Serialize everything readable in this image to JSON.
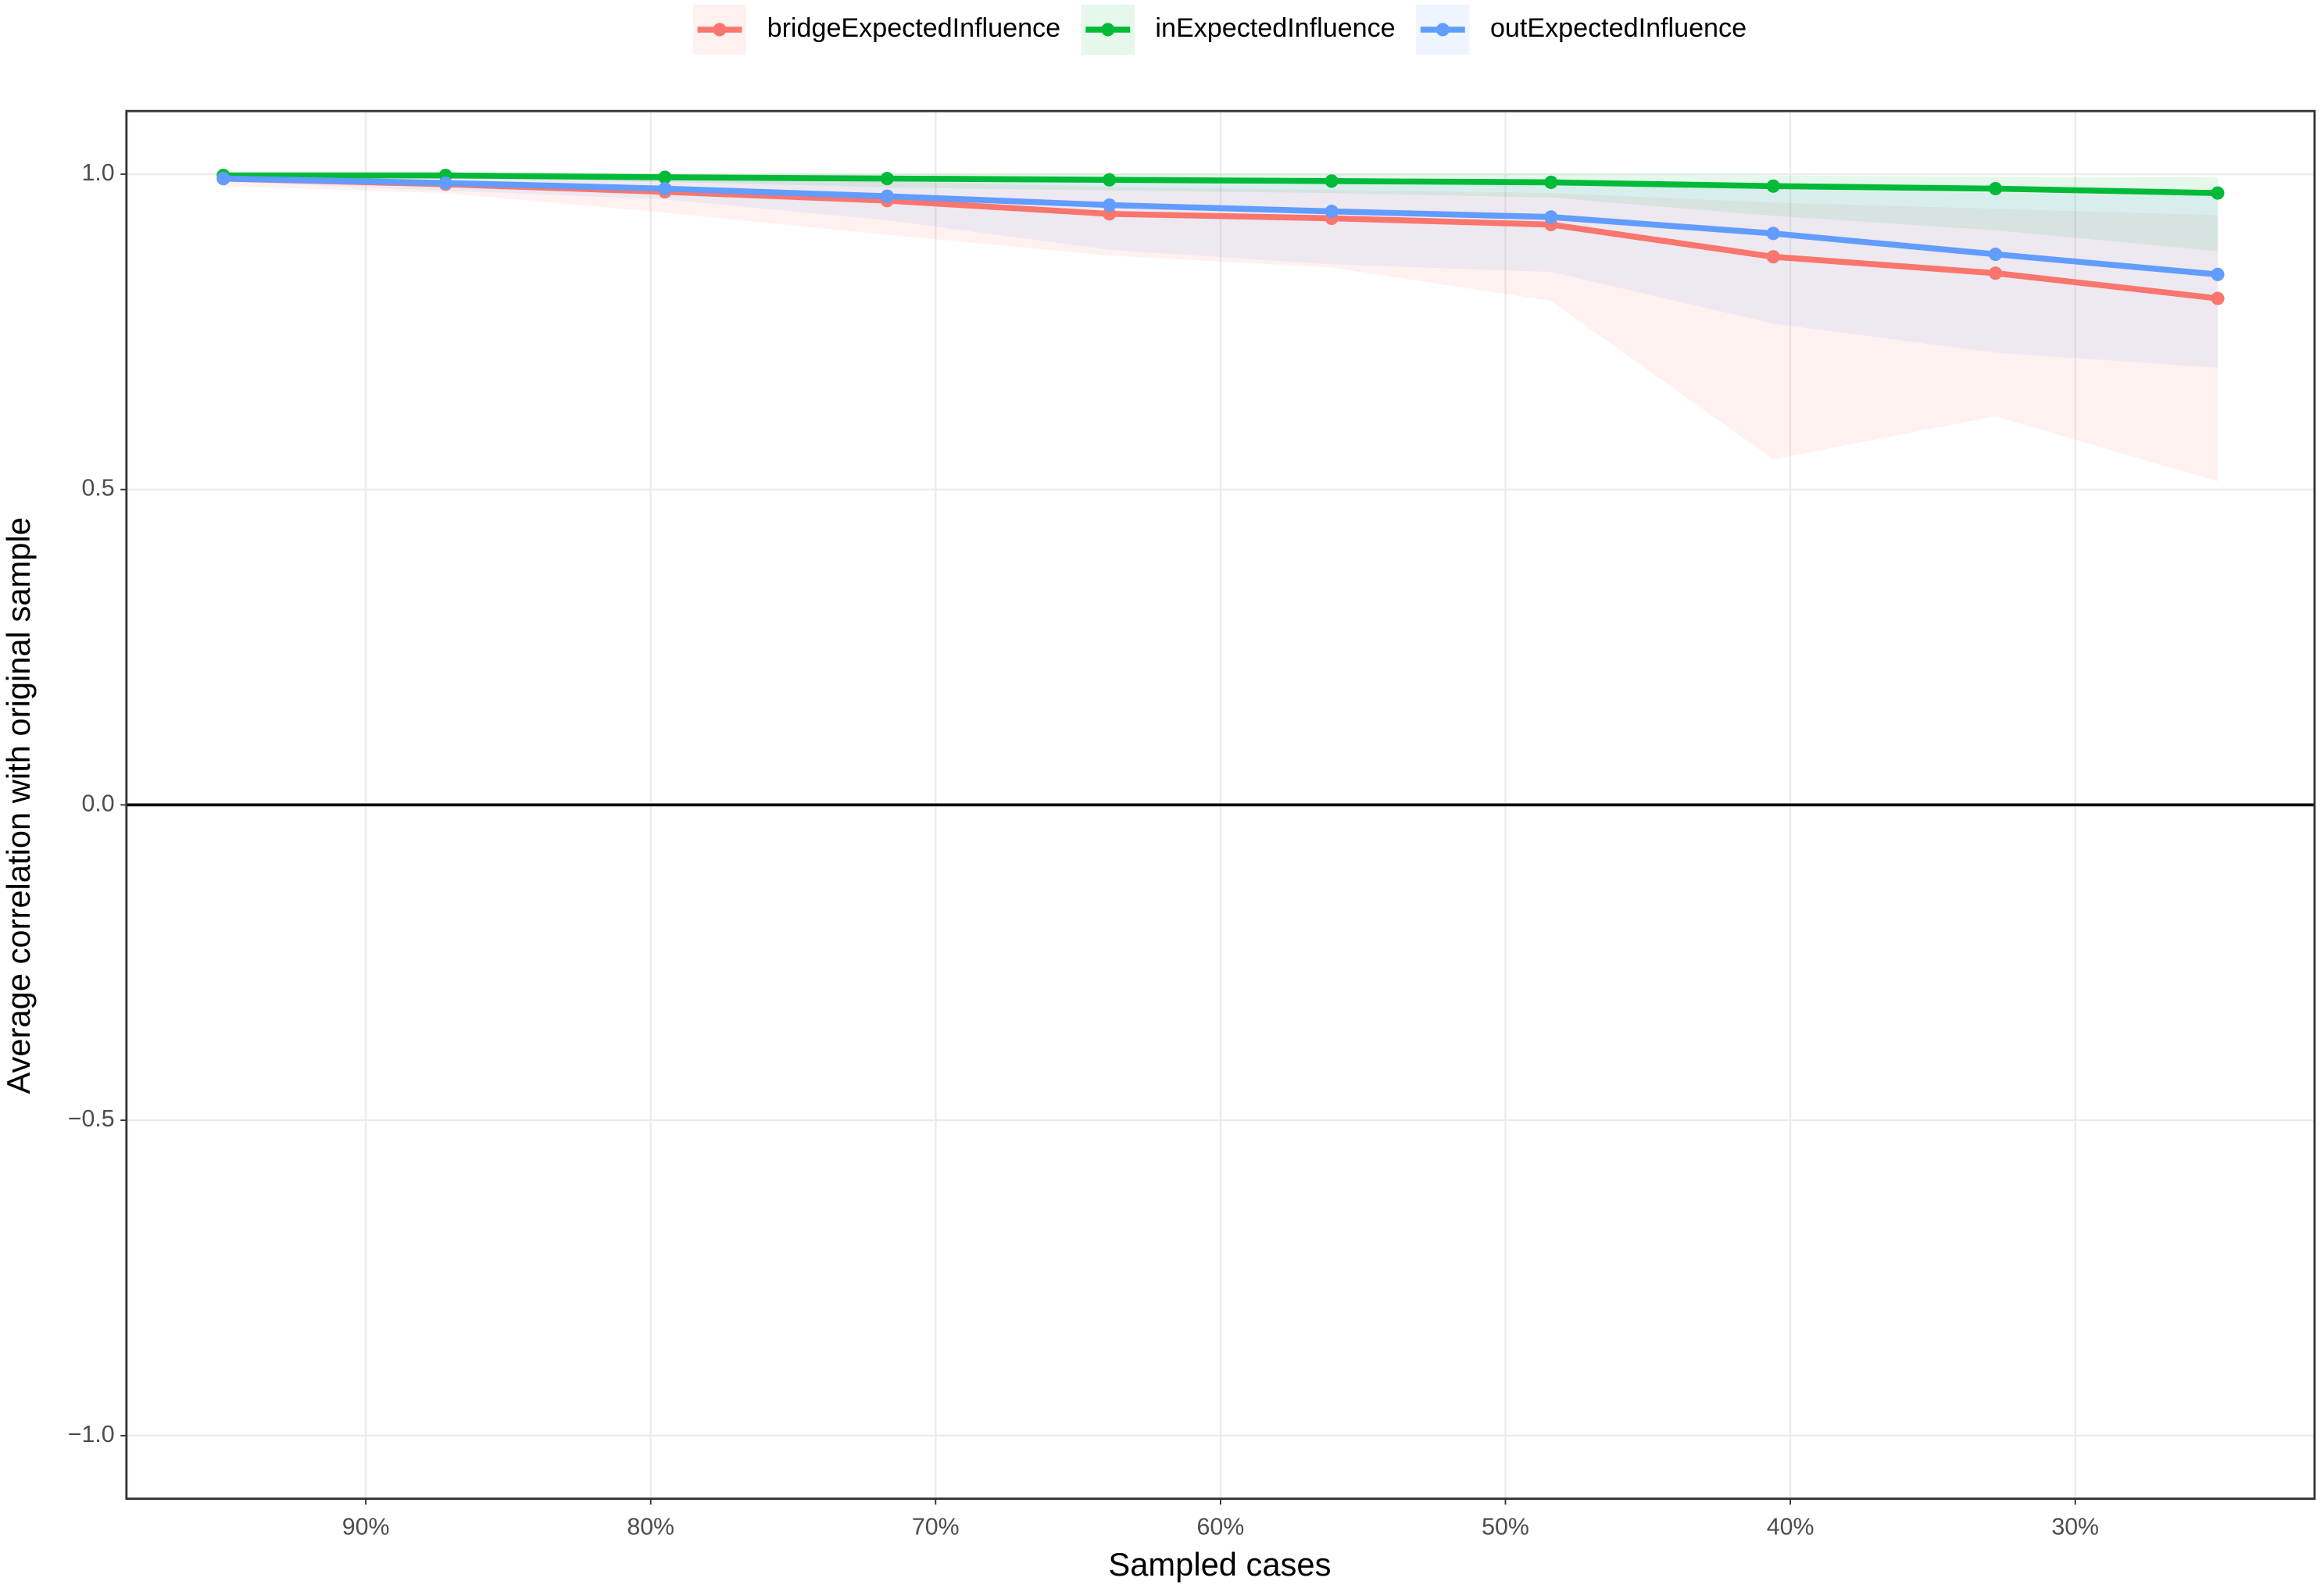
{
  "chart_data": {
    "type": "line",
    "xlabel": "Sampled cases",
    "ylabel": "Average correlation with original sample",
    "x": [
      95,
      87.2,
      79.5,
      71.7,
      63.9,
      56.1,
      48.4,
      40.6,
      32.8,
      25.0
    ],
    "xlim": [
      98.4,
      21.6
    ],
    "xticks": [
      {
        "value": 90,
        "label": "90%"
      },
      {
        "value": 80,
        "label": "80%"
      },
      {
        "value": 70,
        "label": "70%"
      },
      {
        "value": 60,
        "label": "60%"
      },
      {
        "value": 50,
        "label": "50%"
      },
      {
        "value": 40,
        "label": "40%"
      },
      {
        "value": 30,
        "label": "30%"
      }
    ],
    "ylim": [
      -1.1,
      1.1
    ],
    "yticks": [
      {
        "value": -1,
        "label": "−1.0"
      },
      {
        "value": -0.5,
        "label": "−0.5"
      },
      {
        "value": 0,
        "label": "0.0"
      },
      {
        "value": 0.5,
        "label": "0.5"
      },
      {
        "value": 1,
        "label": "1.0"
      }
    ],
    "hline": 0,
    "grid": true,
    "legend": "top",
    "series": [
      {
        "name": "bridgeExpectedInfluence",
        "color": "#F8766D",
        "values": [
          0.993,
          0.984,
          0.972,
          0.958,
          0.937,
          0.93,
          0.92,
          0.869,
          0.843,
          0.803
        ],
        "lower": [
          0.981,
          0.97,
          0.939,
          0.904,
          0.871,
          0.852,
          0.799,
          0.548,
          0.616,
          0.513
        ],
        "upper": [
          1.0,
          0.997,
          0.993,
          0.988,
          0.98,
          0.975,
          0.97,
          0.955,
          0.945,
          0.935
        ]
      },
      {
        "name": "inExpectedInfluence",
        "color": "#00BA38",
        "values": [
          0.998,
          0.998,
          0.995,
          0.993,
          0.991,
          0.989,
          0.987,
          0.981,
          0.977,
          0.97
        ],
        "lower": [
          0.998,
          0.993,
          0.988,
          0.979,
          0.974,
          0.97,
          0.963,
          0.934,
          0.911,
          0.878
        ],
        "upper": [
          1.0,
          1.0,
          1.0,
          1.0,
          1.0,
          1.0,
          1.0,
          0.998,
          0.996,
          0.995
        ]
      },
      {
        "name": "outExpectedInfluence",
        "color": "#619CFF",
        "values": [
          0.993,
          0.986,
          0.977,
          0.965,
          0.951,
          0.941,
          0.932,
          0.906,
          0.873,
          0.841
        ],
        "lower": [
          0.988,
          0.974,
          0.96,
          0.927,
          0.88,
          0.857,
          0.845,
          0.763,
          0.717,
          0.693
        ],
        "upper": [
          1.0,
          0.998,
          0.995,
          0.993,
          0.99,
          0.988,
          0.985,
          0.975,
          0.97,
          0.965
        ]
      }
    ]
  }
}
